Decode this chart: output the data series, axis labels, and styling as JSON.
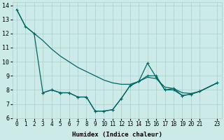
{
  "xlabel": "Humidex (Indice chaleur)",
  "bg_color": "#cceae7",
  "grid_color": "#aacfcc",
  "line_color": "#006666",
  "xlim": [
    -0.5,
    23.5
  ],
  "ylim": [
    6,
    14.2
  ],
  "xticks": [
    0,
    1,
    2,
    3,
    4,
    5,
    6,
    7,
    8,
    9,
    10,
    11,
    12,
    13,
    14,
    15,
    16,
    17,
    18,
    19,
    20,
    21,
    23
  ],
  "yticks": [
    6,
    7,
    8,
    9,
    10,
    11,
    12,
    13,
    14
  ],
  "line1_x": [
    0,
    1,
    2,
    3,
    4,
    5,
    6,
    7,
    8,
    9,
    10,
    11,
    12,
    13,
    14,
    15,
    16,
    17,
    18,
    19,
    20,
    21,
    23
  ],
  "line1_y": [
    13.7,
    12.5,
    12.0,
    11.5,
    10.9,
    10.4,
    10.0,
    9.6,
    9.3,
    9.0,
    8.7,
    8.5,
    8.4,
    8.4,
    8.6,
    8.9,
    8.8,
    8.2,
    8.1,
    7.8,
    7.75,
    7.9,
    8.5
  ],
  "line2_x": [
    0,
    1,
    2,
    3,
    4,
    5,
    6,
    7,
    8,
    9,
    10,
    11,
    12,
    13,
    14,
    15,
    16,
    17,
    18,
    19,
    20,
    21,
    23
  ],
  "line2_y": [
    13.7,
    12.5,
    12.0,
    7.8,
    8.0,
    7.8,
    7.8,
    7.5,
    7.5,
    6.5,
    6.5,
    6.6,
    7.4,
    8.3,
    8.6,
    9.9,
    8.9,
    8.0,
    8.0,
    7.6,
    7.7,
    7.9,
    8.5
  ],
  "line3_x": [
    3,
    4,
    5,
    6,
    7,
    8,
    9,
    10,
    11,
    12,
    13,
    14,
    15,
    16,
    17,
    18,
    19,
    20,
    21,
    23
  ],
  "line3_y": [
    7.8,
    8.0,
    7.8,
    7.8,
    7.5,
    7.5,
    6.5,
    6.5,
    6.6,
    7.4,
    8.3,
    8.6,
    9.0,
    9.0,
    8.0,
    8.1,
    7.6,
    7.7,
    7.9,
    8.5
  ]
}
